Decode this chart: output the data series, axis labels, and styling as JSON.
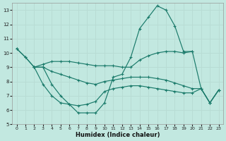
{
  "xlabel": "Humidex (Indice chaleur)",
  "bg_color": "#c2e8e0",
  "line_color": "#1a7a6a",
  "grid_color": "#b8dcd4",
  "xlim": [
    -0.5,
    23.5
  ],
  "ylim": [
    5,
    13.5
  ],
  "yticks": [
    5,
    6,
    7,
    8,
    9,
    10,
    11,
    12,
    13
  ],
  "xticks": [
    0,
    1,
    2,
    3,
    4,
    5,
    6,
    7,
    8,
    9,
    10,
    11,
    12,
    13,
    14,
    15,
    16,
    17,
    18,
    19,
    20,
    21,
    22,
    23
  ],
  "series": [
    {
      "x": [
        0,
        1,
        2,
        3,
        4,
        5,
        6,
        7,
        8,
        9,
        10,
        11,
        12,
        13,
        14,
        15,
        16,
        17,
        18,
        19,
        20
      ],
      "y": [
        10.3,
        9.7,
        9.0,
        9.0,
        7.8,
        7.0,
        6.4,
        5.8,
        5.8,
        5.8,
        6.5,
        8.3,
        8.5,
        9.7,
        11.7,
        12.5,
        13.3,
        13.0,
        11.9,
        10.1,
        10.1
      ]
    },
    {
      "x": [
        0,
        1,
        2,
        3,
        4,
        5,
        6,
        7,
        8,
        9,
        10,
        11,
        12,
        13,
        14,
        15,
        16,
        17,
        18,
        19,
        20,
        21,
        22,
        23
      ],
      "y": [
        10.3,
        9.7,
        9.0,
        9.2,
        9.4,
        9.4,
        9.4,
        9.3,
        9.2,
        9.1,
        9.1,
        9.1,
        9.0,
        9.0,
        9.5,
        9.8,
        10.0,
        10.1,
        10.1,
        10.0,
        10.1,
        7.5,
        6.5,
        7.4
      ]
    },
    {
      "x": [
        2,
        3,
        4,
        5,
        6,
        7,
        8,
        9,
        10,
        11,
        12,
        13,
        14,
        15,
        16,
        17,
        18,
        19,
        20,
        21,
        22,
        23
      ],
      "y": [
        9.0,
        9.0,
        8.7,
        8.5,
        8.3,
        8.1,
        7.9,
        7.8,
        8.0,
        8.1,
        8.2,
        8.3,
        8.3,
        8.3,
        8.2,
        8.1,
        7.9,
        7.7,
        7.5,
        7.5,
        6.5,
        7.4
      ]
    },
    {
      "x": [
        2,
        3,
        4,
        5,
        6,
        7,
        8,
        9,
        10,
        11,
        12,
        13,
        14,
        15,
        16,
        17,
        18,
        19,
        20,
        21,
        22,
        23
      ],
      "y": [
        9.0,
        7.8,
        7.0,
        6.5,
        6.4,
        6.3,
        6.4,
        6.6,
        7.3,
        7.5,
        7.6,
        7.7,
        7.7,
        7.6,
        7.5,
        7.4,
        7.3,
        7.2,
        7.2,
        7.5,
        6.5,
        7.4
      ]
    }
  ]
}
